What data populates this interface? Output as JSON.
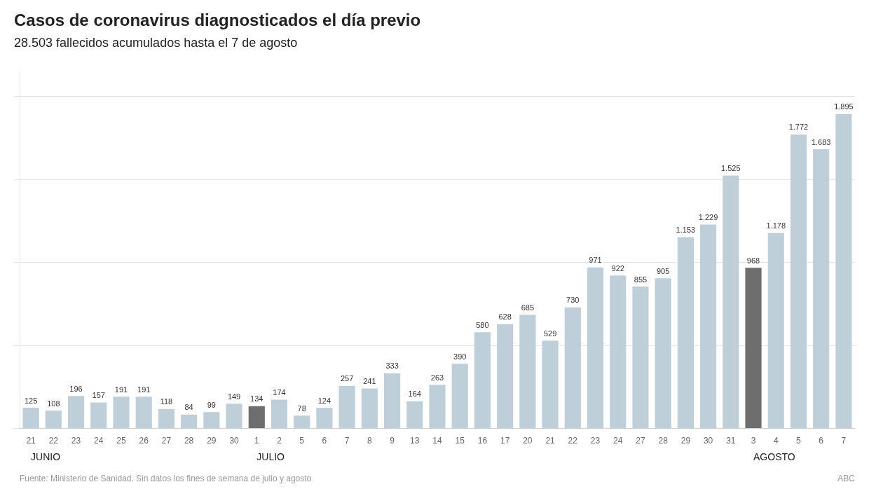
{
  "chart_data": {
    "type": "bar",
    "title": "Casos de coronavirus diagnosticados el día previo",
    "subtitle": "28.503 fallecidos acumulados hasta el 7 de agosto",
    "categories": [
      "21",
      "22",
      "23",
      "24",
      "25",
      "26",
      "27",
      "28",
      "29",
      "30",
      "1",
      "2",
      "5",
      "6",
      "7",
      "8",
      "9",
      "13",
      "14",
      "15",
      "16",
      "17",
      "20",
      "21",
      "22",
      "23",
      "24",
      "27",
      "28",
      "29",
      "30",
      "31",
      "3",
      "4",
      "5",
      "6",
      "7"
    ],
    "values": [
      125,
      108,
      196,
      157,
      191,
      191,
      118,
      84,
      99,
      149,
      134,
      174,
      78,
      124,
      257,
      241,
      333,
      164,
      263,
      390,
      580,
      628,
      685,
      529,
      730,
      971,
      922,
      855,
      905,
      1153,
      1229,
      1525,
      968,
      1178,
      1772,
      1683,
      1895
    ],
    "value_labels": [
      "125",
      "108",
      "196",
      "157",
      "191",
      "191",
      "118",
      "84",
      "99",
      "149",
      "134",
      "174",
      "78",
      "124",
      "257",
      "241",
      "333",
      "164",
      "263",
      "390",
      "580",
      "628",
      "685",
      "529",
      "730",
      "971",
      "922",
      "855",
      "905",
      "1.153",
      "1.229",
      "1.525",
      "968",
      "1.178",
      "1.772",
      "1.683",
      "1.895"
    ],
    "colors": [
      "#bfcfda",
      "#bfcfda",
      "#bfcfda",
      "#bfcfda",
      "#bfcfda",
      "#bfcfda",
      "#bfcfda",
      "#bfcfda",
      "#bfcfda",
      "#bfcfda",
      "#6e6e6e",
      "#bfcfda",
      "#bfcfda",
      "#bfcfda",
      "#bfcfda",
      "#bfcfda",
      "#bfcfda",
      "#bfcfda",
      "#bfcfda",
      "#bfcfda",
      "#bfcfda",
      "#bfcfda",
      "#bfcfda",
      "#bfcfda",
      "#bfcfda",
      "#bfcfda",
      "#bfcfda",
      "#bfcfda",
      "#bfcfda",
      "#bfcfda",
      "#bfcfda",
      "#bfcfda",
      "#6e6e6e",
      "#bfcfda",
      "#bfcfda",
      "#bfcfda",
      "#bfcfda"
    ],
    "ylim": [
      0,
      2150
    ],
    "yticks": [
      0,
      500,
      1000,
      1500,
      2000
    ],
    "grid": true,
    "data_labels": true,
    "tick_labels": "x",
    "annotations": [
      {
        "text": "JUNIO",
        "x": 0
      },
      {
        "text": "JULIO",
        "x": 10
      },
      {
        "text": "AGOSTO",
        "x": 32
      },
      {
        "text": "Fuente: Ministerio de Sanidad. Sin datos los fines de semana de julio y agosto"
      },
      {
        "text": "ABC"
      }
    ]
  }
}
